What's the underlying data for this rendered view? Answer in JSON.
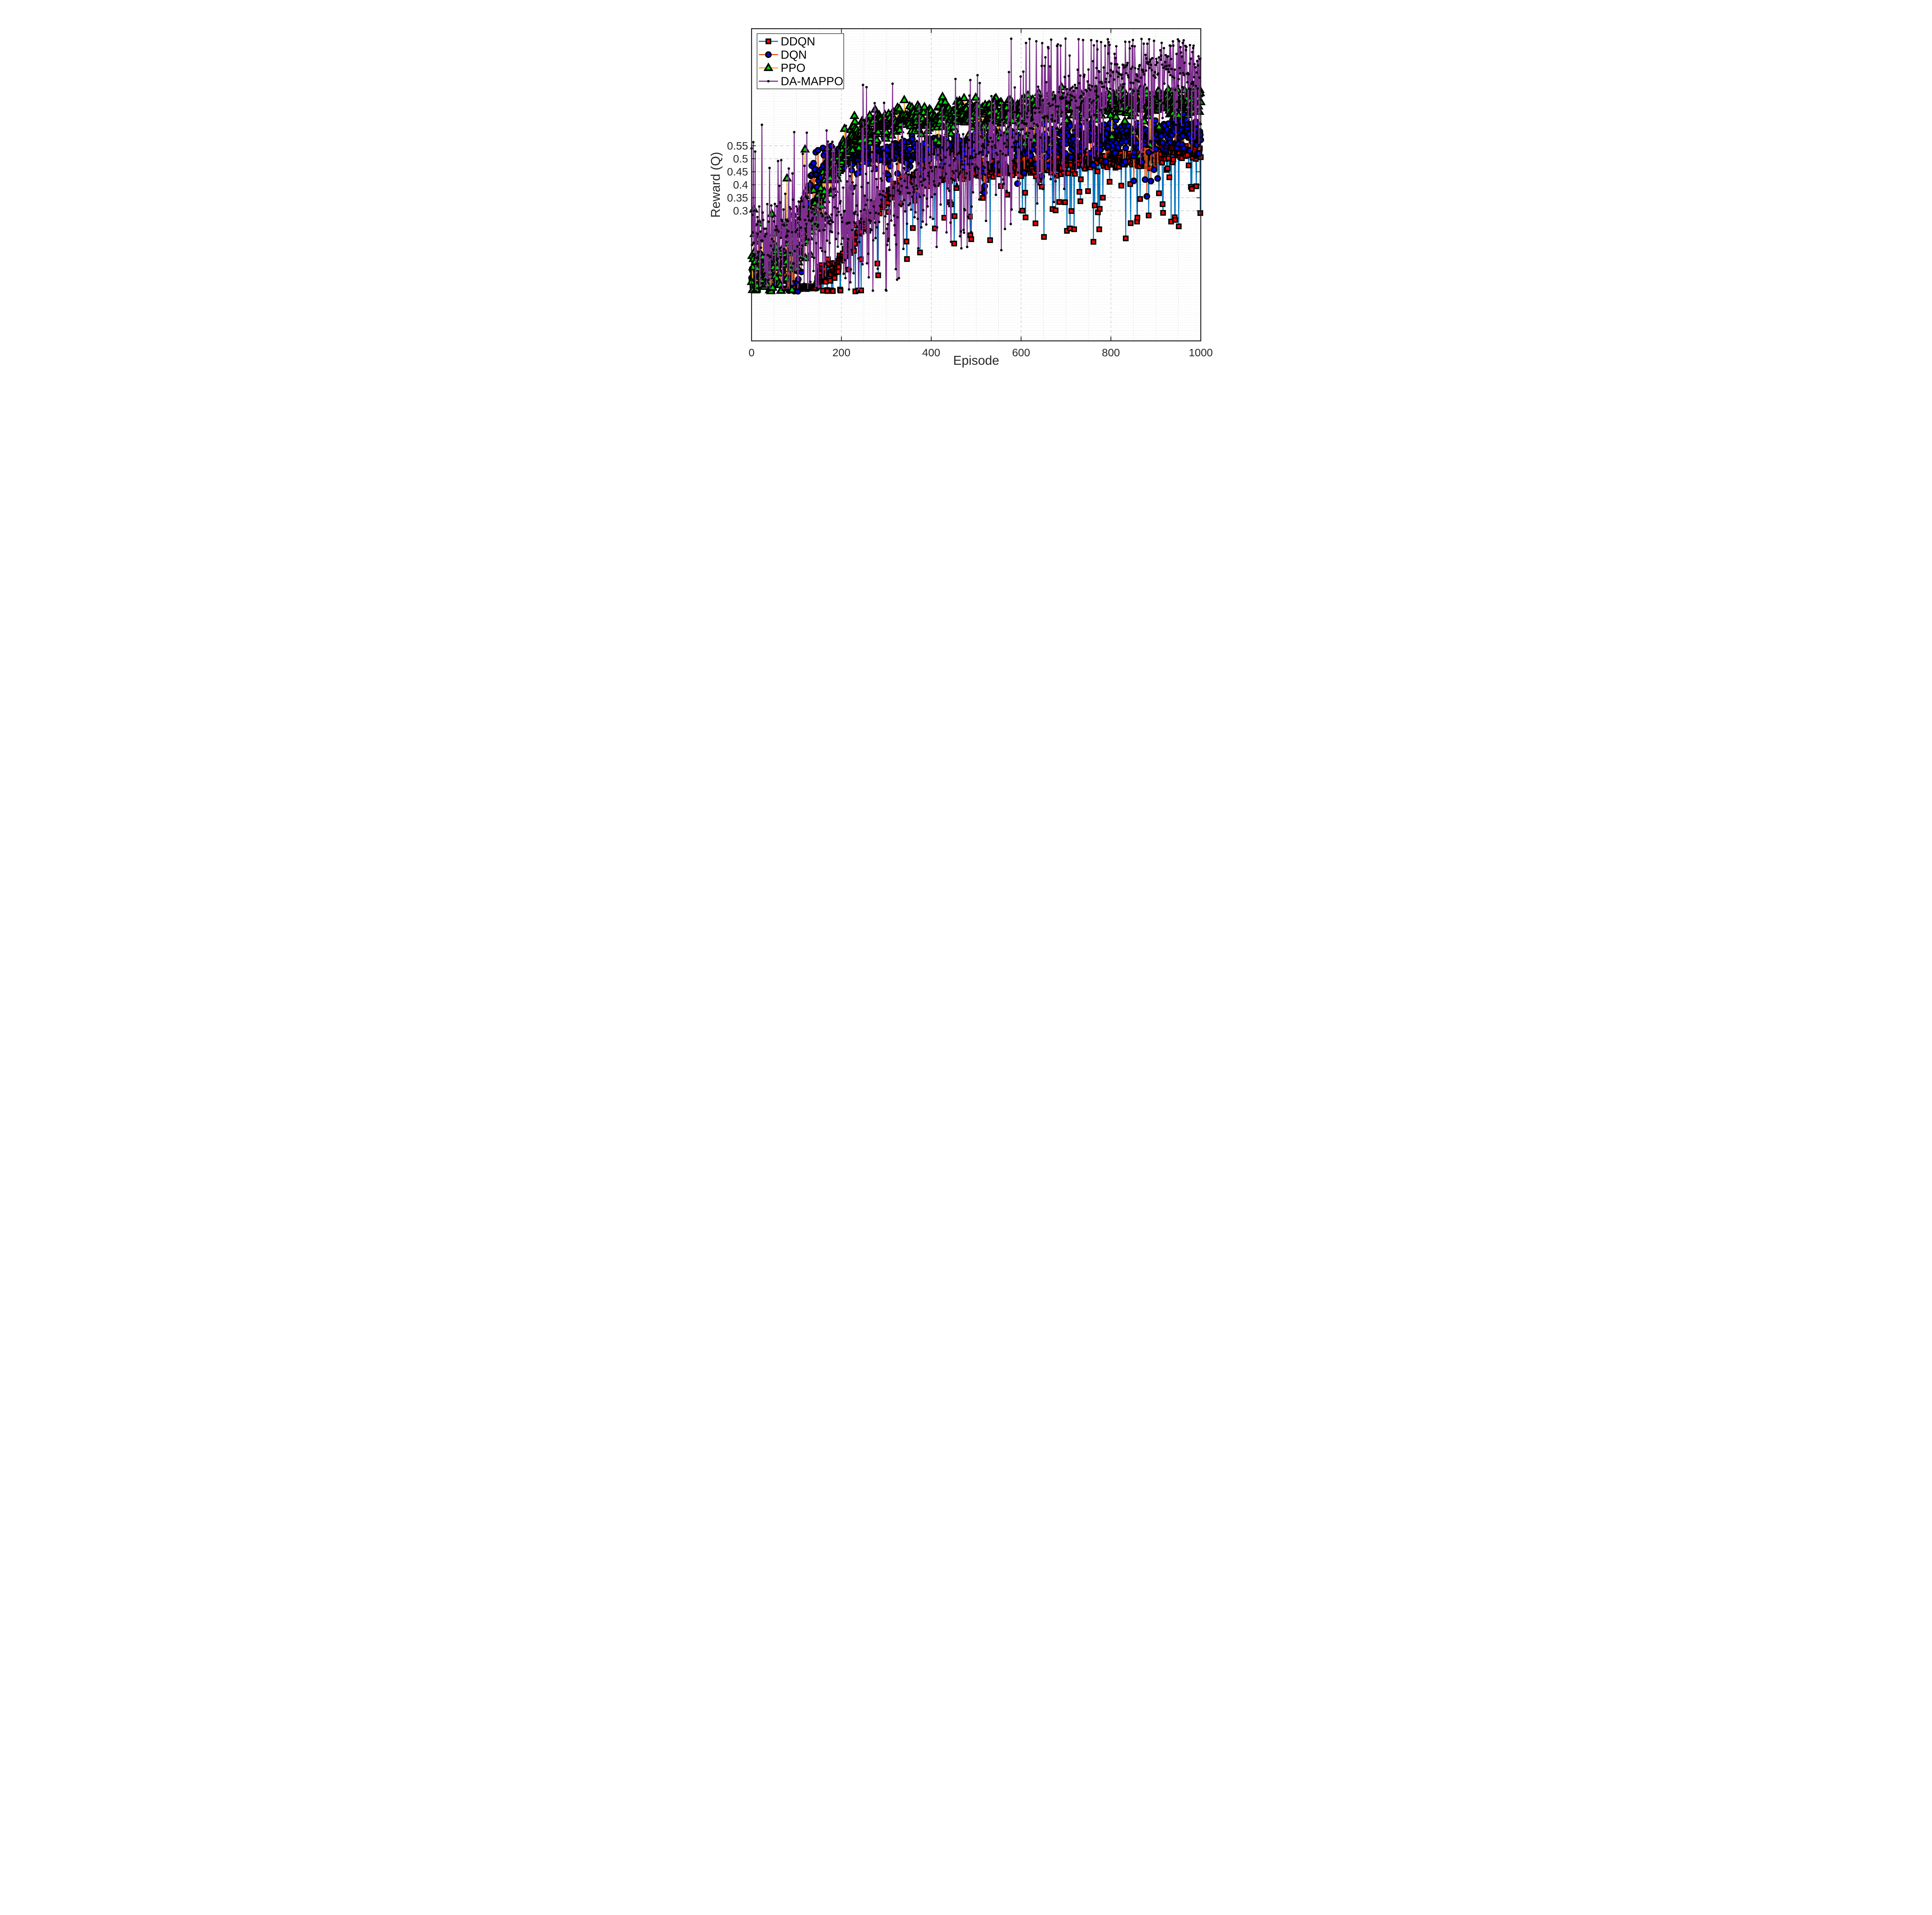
{
  "chart_data": {
    "type": "line",
    "title": "",
    "xlabel": "Episode",
    "ylabel": "Reward (Q)",
    "xlim": [
      0,
      1000
    ],
    "ylim": [
      -0.2,
      1.0
    ],
    "xticks": [
      0,
      200,
      400,
      600,
      800,
      1000
    ],
    "xtick_labels": [
      "0",
      "200",
      "400",
      "600",
      "800",
      "1000"
    ],
    "yticks": [
      0.3,
      0.35,
      0.4,
      0.45,
      0.5,
      0.55
    ],
    "ytick_labels": [
      "0.3",
      "0.35",
      "0.4",
      "0.45",
      "0.5",
      "0.55"
    ],
    "grid": true,
    "minor_grid": true,
    "y_minor_step": 0.01,
    "x_minor_step": 50,
    "legend_position": "northwest",
    "n_points_per_series": 1001,
    "x_step": 1,
    "seed": 11,
    "grid_colors": {
      "h_minor": "#c9c9c9",
      "h_major": "#adadad",
      "v_minor": "#c3c3c3",
      "v_major": "#b3b3b3",
      "axis": "#1a1a1a"
    },
    "series": [
      {
        "name": "DDQN",
        "line_color": "#0072BD",
        "marker": "square",
        "marker_fill": "#FF0000",
        "marker_edge": "#000000",
        "trend_keypoints": [
          [
            0,
            0.06
          ],
          [
            40,
            0.065
          ],
          [
            80,
            0.05
          ],
          [
            86,
            0.012
          ],
          [
            92,
            0.005
          ],
          [
            142,
            0.005
          ],
          [
            150,
            0.04
          ],
          [
            168,
            0.06
          ],
          [
            188,
            0.09
          ],
          [
            210,
            0.14
          ],
          [
            235,
            0.21
          ],
          [
            260,
            0.28
          ],
          [
            285,
            0.33
          ],
          [
            310,
            0.37
          ],
          [
            340,
            0.4
          ],
          [
            370,
            0.42
          ],
          [
            400,
            0.435
          ],
          [
            440,
            0.445
          ],
          [
            480,
            0.455
          ],
          [
            520,
            0.46
          ],
          [
            560,
            0.465
          ],
          [
            600,
            0.47
          ],
          [
            650,
            0.476
          ],
          [
            700,
            0.485
          ],
          [
            750,
            0.492
          ],
          [
            800,
            0.5
          ],
          [
            850,
            0.506
          ],
          [
            900,
            0.512
          ],
          [
            950,
            0.52
          ],
          [
            1000,
            0.53
          ]
        ],
        "noise": {
          "std_segments": [
            [
              0,
              86,
              0.022
            ],
            [
              86,
              146,
              0.003
            ],
            [
              146,
              200,
              0.02
            ],
            [
              200,
              1001,
              0.018
            ]
          ],
          "dip_prob": 0.1,
          "dip_min": 0.06,
          "dip_max": 0.3,
          "dip_start": 150,
          "up_prob": 0.01,
          "up_min": 0.02,
          "up_max": 0.08,
          "up_end": 1001,
          "up_cap": 0.1,
          "clamp_min": -0.01,
          "clamp_max": 0.96
        }
      },
      {
        "name": "DQN",
        "line_color": "#D95319",
        "marker": "circle",
        "marker_fill": "#0000FF",
        "marker_edge": "#000000",
        "trend_keypoints": [
          [
            0,
            0.07
          ],
          [
            50,
            0.075
          ],
          [
            80,
            0.09
          ],
          [
            100,
            0.15
          ],
          [
            120,
            0.28
          ],
          [
            140,
            0.4
          ],
          [
            160,
            0.46
          ],
          [
            185,
            0.49
          ],
          [
            220,
            0.505
          ],
          [
            260,
            0.515
          ],
          [
            300,
            0.52
          ],
          [
            350,
            0.53
          ],
          [
            400,
            0.535
          ],
          [
            450,
            0.545
          ],
          [
            500,
            0.55
          ],
          [
            550,
            0.556
          ],
          [
            600,
            0.561
          ],
          [
            650,
            0.567
          ],
          [
            700,
            0.572
          ],
          [
            750,
            0.578
          ],
          [
            800,
            0.583
          ],
          [
            850,
            0.588
          ],
          [
            900,
            0.592
          ],
          [
            950,
            0.597
          ],
          [
            1000,
            0.601
          ]
        ],
        "noise": {
          "std_segments": [
            [
              0,
              80,
              0.025
            ],
            [
              80,
              150,
              0.075
            ],
            [
              150,
              1001,
              0.03
            ]
          ],
          "dip_prob": 0.045,
          "dip_min": 0.05,
          "dip_max": 0.17,
          "dip_start": 150,
          "up_prob": 0.012,
          "up_min": 0.02,
          "up_max": 0.07,
          "up_end": 1001,
          "up_cap": 0.12,
          "clamp_min": -0.01,
          "clamp_max": 0.96
        }
      },
      {
        "name": "PPO",
        "line_color": "#EDB120",
        "marker": "triangle",
        "marker_fill": "#00D500",
        "marker_edge": "#000000",
        "trend_keypoints": [
          [
            0,
            0.09
          ],
          [
            30,
            0.1
          ],
          [
            60,
            0.13
          ],
          [
            90,
            0.17
          ],
          [
            120,
            0.24
          ],
          [
            150,
            0.33
          ],
          [
            180,
            0.45
          ],
          [
            210,
            0.55
          ],
          [
            240,
            0.6
          ],
          [
            270,
            0.625
          ],
          [
            300,
            0.64
          ],
          [
            350,
            0.655
          ],
          [
            400,
            0.66
          ],
          [
            450,
            0.665
          ],
          [
            500,
            0.67
          ],
          [
            550,
            0.675
          ],
          [
            600,
            0.682
          ],
          [
            650,
            0.69
          ],
          [
            700,
            0.7
          ],
          [
            750,
            0.707
          ],
          [
            800,
            0.712
          ],
          [
            850,
            0.716
          ],
          [
            900,
            0.72
          ],
          [
            950,
            0.725
          ],
          [
            1000,
            0.73
          ]
        ],
        "noise": {
          "std_segments": [
            [
              0,
              100,
              0.085
            ],
            [
              100,
              180,
              0.065
            ],
            [
              180,
              240,
              0.045
            ],
            [
              240,
              1001,
              0.028
            ]
          ],
          "dip_prob": 0.03,
          "dip_min": 0.05,
          "dip_max": 0.16,
          "dip_start": 240,
          "up_prob": 0.035,
          "up_min": 0.05,
          "up_max": 0.3,
          "up_end": 235,
          "up_cap": 0.5,
          "clamp_min": -0.01,
          "clamp_max": 0.96
        }
      },
      {
        "name": "DA-MAPPO",
        "line_color": "#7E2F8E",
        "marker": "dot",
        "marker_fill": "#000000",
        "marker_edge": "#000000",
        "trend_keypoints": [
          [
            0,
            0.22
          ],
          [
            60,
            0.22
          ],
          [
            120,
            0.24
          ],
          [
            180,
            0.27
          ],
          [
            240,
            0.31
          ],
          [
            300,
            0.35
          ],
          [
            360,
            0.39
          ],
          [
            420,
            0.44
          ],
          [
            470,
            0.49
          ],
          [
            520,
            0.535
          ],
          [
            570,
            0.585
          ],
          [
            620,
            0.64
          ],
          [
            670,
            0.7
          ],
          [
            720,
            0.755
          ],
          [
            770,
            0.795
          ],
          [
            820,
            0.82
          ],
          [
            870,
            0.835
          ],
          [
            920,
            0.845
          ],
          [
            1000,
            0.85
          ]
        ],
        "noise": {
          "std_segments": [
            [
              0,
              430,
              0.08
            ],
            [
              430,
              640,
              0.06
            ],
            [
              640,
              1001,
              0.042
            ]
          ],
          "dip_prob": 0.2,
          "dip_min": 0.08,
          "dip_max": 0.32,
          "dip_start": 0,
          "up_prob": 0.15,
          "up_min": 0.06,
          "up_max": 0.38,
          "up_end": 1001,
          "up_cap": 0.5,
          "clamp_min": -0.01,
          "clamp_max": 0.962
        }
      }
    ]
  },
  "legend": {
    "entries": [
      "DDQN",
      "DQN",
      "PPO",
      "DA-MAPPO"
    ],
    "background": "#ffffff",
    "border_color": "#000000"
  }
}
